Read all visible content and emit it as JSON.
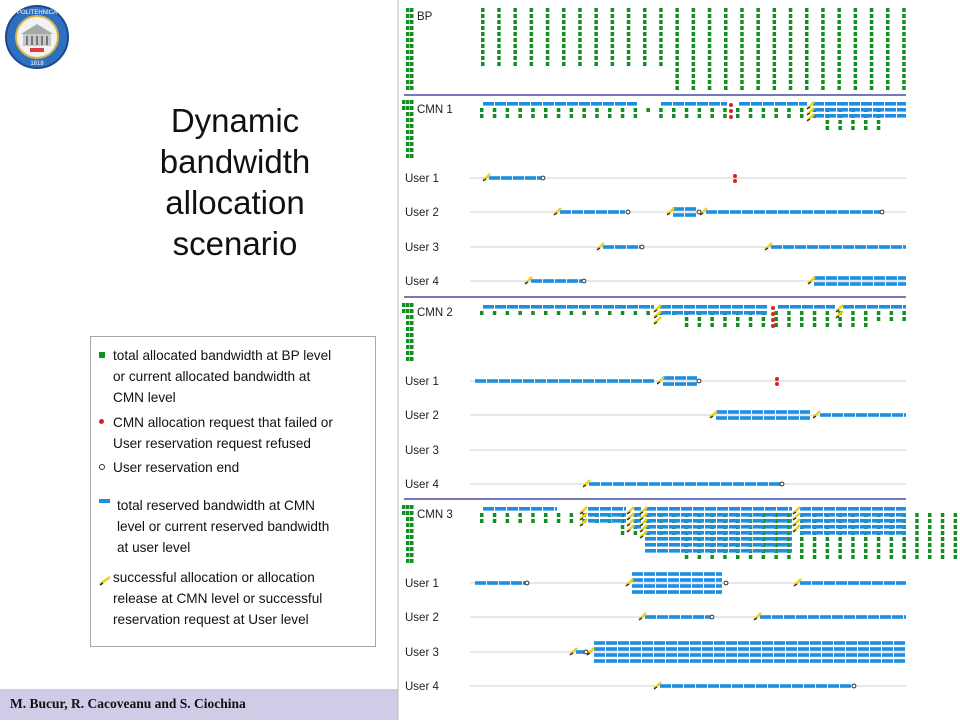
{
  "title_lines": [
    "Dynamic",
    "bandwidth",
    "allocation",
    "scenario"
  ],
  "footer": {
    "authors": "M. Bucur, R. Cacoveanu and S. Ciochina"
  },
  "logo": {
    "text_top": "POLITEHNICA",
    "year": "1818"
  },
  "legend": {
    "items": [
      {
        "symbol": "green-square",
        "text": "total allocated bandwidth at BP level\nor current allocated bandwidth at\nCMN level"
      },
      {
        "symbol": "red-dot",
        "text": "CMN allocation request that failed or\nUser reservation request refused"
      },
      {
        "symbol": "circle",
        "text": "User reservation end"
      },
      {
        "symbol": "blue-dash",
        "text": "total reserved bandwidth at CMN\nlevel or current reserved bandwidth\nat user level"
      },
      {
        "symbol": "yellow-check",
        "text": "successful allocation or allocation\nrelease at CMN level or successful\nreservation request  at User level"
      }
    ]
  },
  "colors": {
    "green": "#118f1f",
    "blue": "#1d8ee0",
    "red": "#e02020",
    "yellow": "#e8d21c",
    "separator": "#4a4aa8",
    "baseline": "#d0d0d0",
    "footer": "#cfcce8"
  },
  "diagram": {
    "bp": {
      "label": "BP",
      "counts": [
        10,
        10,
        10,
        10,
        10,
        10,
        10,
        10,
        10,
        10,
        10,
        10,
        14,
        14,
        14,
        14,
        14,
        14,
        14,
        14,
        14,
        14,
        14,
        14,
        14,
        14,
        14
      ]
    },
    "groups": [
      {
        "cmn": {
          "label": "CMN 1",
          "segments": [
            {
              "from": 483,
              "to": 637,
              "rows": 1
            },
            {
              "from": 661,
              "to": 727,
              "rows": 1
            },
            {
              "from": 739,
              "to": 807,
              "rows": 1
            },
            {
              "from": 813,
              "to": 906,
              "rows": 3
            }
          ],
          "green_counts": [
            2,
            2,
            2,
            2,
            2,
            2,
            2,
            2,
            2,
            2,
            2,
            2,
            2,
            1,
            2,
            2,
            2,
            2,
            2,
            2,
            2,
            2,
            2,
            2,
            2,
            2,
            2,
            4,
            4,
            4,
            4,
            4
          ],
          "red_marks": [
            {
              "x": 731,
              "count": 3
            }
          ],
          "checks": [
            {
              "x": 810,
              "count": 3
            }
          ]
        },
        "users": [
          {
            "label": "User 1",
            "segments": [
              {
                "from": 489,
                "to": 541,
                "rows": 1
              }
            ],
            "checks": [
              486
            ],
            "ends": [
              543
            ],
            "red": [
              {
                "x": 735,
                "count": 2
              }
            ]
          },
          {
            "label": "User 2",
            "segments": [
              {
                "from": 560,
                "to": 625,
                "rows": 1
              },
              {
                "from": 673,
                "to": 697,
                "rows": 2
              },
              {
                "from": 706,
                "to": 880,
                "rows": 1
              }
            ],
            "checks": [
              557,
              670,
              703
            ],
            "ends": [
              628,
              699,
              882
            ],
            "red": []
          },
          {
            "label": "User 3",
            "segments": [
              {
                "from": 603,
                "to": 640,
                "rows": 1
              },
              {
                "from": 771,
                "to": 906,
                "rows": 1
              }
            ],
            "checks": [
              600,
              768
            ],
            "ends": [
              642
            ],
            "red": []
          },
          {
            "label": "User 4",
            "segments": [
              {
                "from": 531,
                "to": 582,
                "rows": 1
              },
              {
                "from": 814,
                "to": 906,
                "rows": 2
              }
            ],
            "checks": [
              528,
              811
            ],
            "ends": [
              584
            ],
            "red": []
          }
        ]
      },
      {
        "cmn": {
          "label": "CMN 2",
          "segments": [
            {
              "from": 483,
              "to": 654,
              "rows": 1
            },
            {
              "from": 660,
              "to": 768,
              "rows": 2
            },
            {
              "from": 778,
              "to": 835,
              "rows": 1
            },
            {
              "from": 843,
              "to": 906,
              "rows": 1
            }
          ],
          "green_counts": [
            1,
            1,
            1,
            1,
            1,
            1,
            1,
            1,
            1,
            1,
            1,
            1,
            1,
            1,
            1,
            1,
            3,
            3,
            3,
            3,
            3,
            3,
            3,
            3,
            3,
            3,
            3,
            3,
            3,
            3,
            3,
            2,
            2,
            2
          ],
          "red_marks": [
            {
              "x": 773,
              "count": 4
            }
          ],
          "checks": [
            {
              "x": 657,
              "count": 3
            },
            {
              "x": 839,
              "count": 2
            }
          ]
        },
        "users": [
          {
            "label": "User 1",
            "segments": [
              {
                "from": 475,
                "to": 655,
                "rows": 1
              },
              {
                "from": 663,
                "to": 697,
                "rows": 2
              }
            ],
            "checks": [
              660
            ],
            "ends": [
              699
            ],
            "red": [
              {
                "x": 777,
                "count": 2
              }
            ]
          },
          {
            "label": "User 2",
            "segments": [
              {
                "from": 716,
                "to": 810,
                "rows": 2
              },
              {
                "from": 820,
                "to": 906,
                "rows": 1
              }
            ],
            "checks": [
              713,
              816
            ],
            "ends": [],
            "red": []
          },
          {
            "label": "User 3",
            "segments": [],
            "checks": [],
            "ends": [],
            "red": []
          },
          {
            "label": "User 4",
            "segments": [
              {
                "from": 589,
                "to": 780,
                "rows": 1
              }
            ],
            "checks": [
              586
            ],
            "ends": [
              782
            ],
            "red": []
          }
        ]
      },
      {
        "cmn": {
          "label": "CMN 3",
          "segments": [
            {
              "from": 483,
              "to": 557,
              "rows": 1
            },
            {
              "from": 588,
              "to": 626,
              "rows": 3
            },
            {
              "from": 634,
              "to": 641,
              "rows": 4
            },
            {
              "from": 645,
              "to": 792,
              "rows": 8
            },
            {
              "from": 800,
              "to": 906,
              "rows": 5
            }
          ],
          "green_counts": [
            2,
            2,
            2,
            2,
            2,
            2,
            2,
            2,
            2,
            2,
            2,
            4,
            4,
            4,
            4,
            4,
            8,
            8,
            8,
            8,
            8,
            8,
            8,
            8,
            8,
            8,
            8,
            8,
            8,
            8,
            8,
            8,
            8,
            8,
            8,
            8,
            8,
            8,
            8,
            8,
            8,
            8
          ],
          "red_marks": [],
          "checks": [
            {
              "x": 583,
              "count": 3
            },
            {
              "x": 630,
              "count": 4
            },
            {
              "x": 643,
              "count": 5
            },
            {
              "x": 796,
              "count": 4
            }
          ]
        },
        "users": [
          {
            "label": "User 1",
            "segments": [
              {
                "from": 475,
                "to": 525,
                "rows": 1
              },
              {
                "from": 632,
                "to": 722,
                "rows": 4
              },
              {
                "from": 800,
                "to": 906,
                "rows": 1
              }
            ],
            "checks": [
              629,
              797
            ],
            "ends": [
              527,
              726
            ],
            "red": []
          },
          {
            "label": "User 2",
            "segments": [
              {
                "from": 645,
                "to": 710,
                "rows": 1
              },
              {
                "from": 760,
                "to": 906,
                "rows": 1
              }
            ],
            "checks": [
              642,
              757
            ],
            "ends": [
              712
            ],
            "red": []
          },
          {
            "label": "User 3",
            "segments": [
              {
                "from": 576,
                "to": 584,
                "rows": 1
              },
              {
                "from": 594,
                "to": 906,
                "rows": 4
              }
            ],
            "checks": [
              573,
              590
            ],
            "ends": [
              586
            ],
            "red": []
          },
          {
            "label": "User 4",
            "segments": [
              {
                "from": 660,
                "to": 852,
                "rows": 1
              }
            ],
            "checks": [
              657
            ],
            "ends": [
              854
            ],
            "red": []
          }
        ]
      }
    ]
  }
}
